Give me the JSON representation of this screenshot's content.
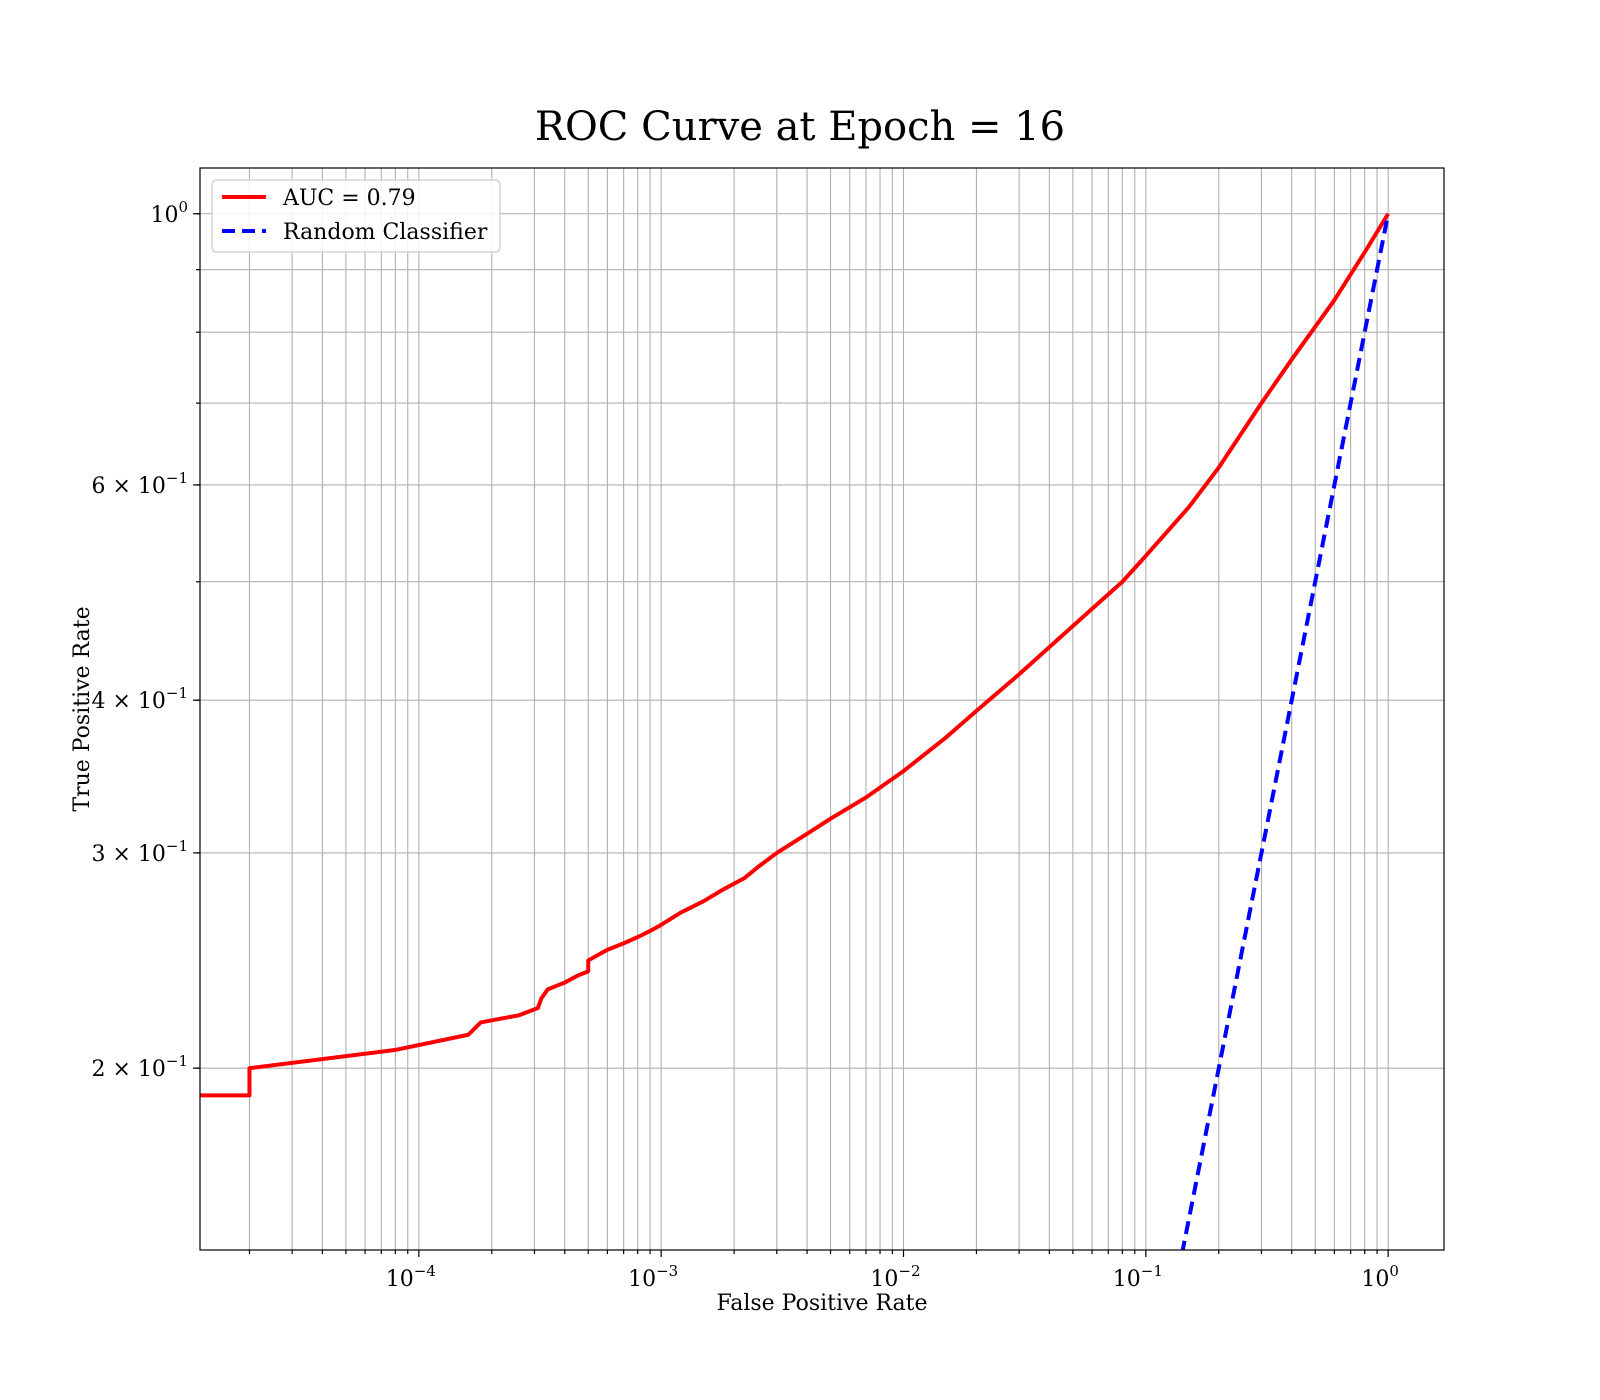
{
  "chart_data": {
    "type": "line",
    "title": "ROC Curve at Epoch = 16",
    "xlabel": "False Positive Rate",
    "ylabel": "True Positive Rate",
    "xscale": "log",
    "yscale": "log",
    "xlim": [
      1.25e-05,
      1.7
    ],
    "ylim": [
      0.142,
      1.09
    ],
    "grid": "both major and minor",
    "legend_position": "top-left",
    "x_tick_labels": [
      {
        "value": 0.0001,
        "base": "10",
        "exp": "−4"
      },
      {
        "value": 0.001,
        "base": "10",
        "exp": "−3"
      },
      {
        "value": 0.01,
        "base": "10",
        "exp": "−2"
      },
      {
        "value": 0.1,
        "base": "10",
        "exp": "−1"
      },
      {
        "value": 1,
        "base": "10",
        "exp": "0"
      }
    ],
    "y_tick_labels": [
      {
        "value": 1,
        "prefix": "",
        "base": "10",
        "exp": "0"
      },
      {
        "value": 0.6,
        "prefix": "6 × ",
        "base": "10",
        "exp": "−1"
      },
      {
        "value": 0.4,
        "prefix": "4 × ",
        "base": "10",
        "exp": "−1"
      },
      {
        "value": 0.3,
        "prefix": "3 × ",
        "base": "10",
        "exp": "−1"
      },
      {
        "value": 0.2,
        "prefix": "2 × ",
        "base": "10",
        "exp": "−1"
      }
    ],
    "series": [
      {
        "name": "AUC = 0.79",
        "color": "#ff0000",
        "style": "solid",
        "x": [
          1.25e-05,
          2e-05,
          2e-05,
          8e-05,
          0.00016,
          0.00018,
          0.00026,
          0.00031,
          0.00032,
          0.00034,
          0.0004,
          0.00045,
          0.0005,
          0.0005,
          0.0006,
          0.0007,
          0.0008,
          0.0009,
          0.001,
          0.0012,
          0.0015,
          0.0018,
          0.0022,
          0.0025,
          0.003,
          0.004,
          0.005,
          0.007,
          0.01,
          0.015,
          0.02,
          0.03,
          0.05,
          0.08,
          0.1,
          0.15,
          0.2,
          0.3,
          0.4,
          0.6,
          0.8,
          1.0
        ],
        "y": [
          0.19,
          0.19,
          0.2,
          0.207,
          0.213,
          0.218,
          0.221,
          0.224,
          0.228,
          0.232,
          0.235,
          0.238,
          0.24,
          0.245,
          0.25,
          0.253,
          0.256,
          0.259,
          0.262,
          0.268,
          0.274,
          0.28,
          0.286,
          0.292,
          0.3,
          0.311,
          0.32,
          0.333,
          0.35,
          0.373,
          0.392,
          0.42,
          0.46,
          0.5,
          0.525,
          0.575,
          0.62,
          0.7,
          0.76,
          0.85,
          0.93,
          1.0
        ]
      },
      {
        "name": "Random Classifier",
        "color": "#0000ff",
        "style": "dashed",
        "x": [
          0.131,
          1.0
        ],
        "y": [
          0.131,
          1.0
        ]
      }
    ]
  }
}
